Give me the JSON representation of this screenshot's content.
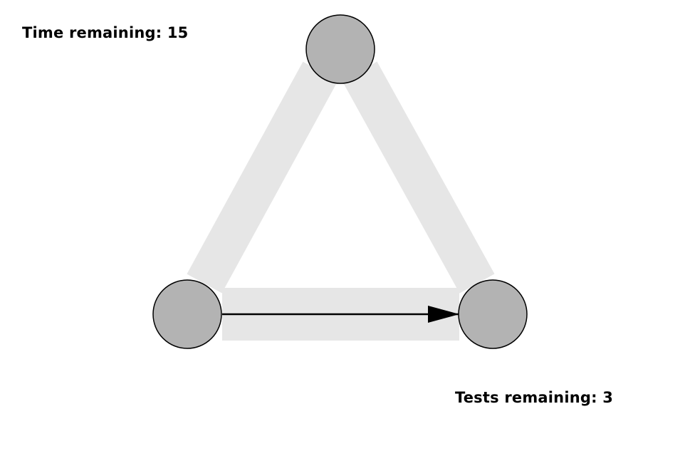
{
  "hud": {
    "time_label": "Time remaining: 15",
    "tests_label": "Tests remaining: 3"
  },
  "colors": {
    "background": "#ffffff",
    "edge_band": "#e6e6e6",
    "node_fill": "#b3b3b3",
    "node_stroke": "#000000",
    "arrow": "#000000"
  },
  "graph": {
    "nodes": [
      "top",
      "bottom-left",
      "bottom-right"
    ],
    "edges": [
      {
        "from": "bottom-left",
        "to": "top",
        "directed": false
      },
      {
        "from": "top",
        "to": "bottom-right",
        "directed": false
      },
      {
        "from": "bottom-left",
        "to": "bottom-right",
        "directed": true
      }
    ]
  }
}
